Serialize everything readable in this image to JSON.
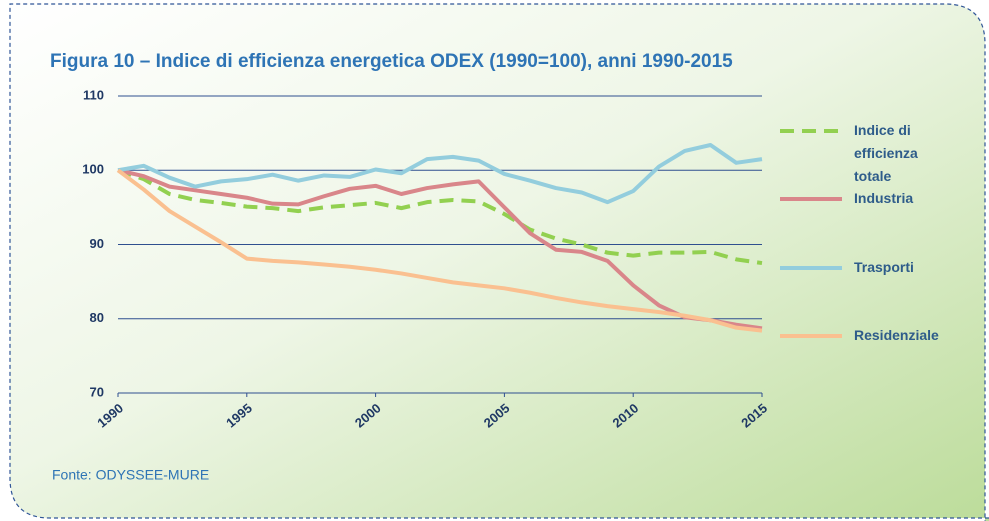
{
  "chart_data": {
    "type": "line",
    "title": "Figura 10 – Indice di efficienza energetica ODEX (1990=100), anni 1990-2015",
    "source": "Fonte: ODYSSEE-MURE",
    "x": [
      1990,
      1991,
      1992,
      1993,
      1994,
      1995,
      1996,
      1997,
      1998,
      1999,
      2000,
      2001,
      2002,
      2003,
      2004,
      2005,
      2006,
      2007,
      2008,
      2009,
      2010,
      2011,
      2012,
      2013,
      2014,
      2015
    ],
    "xlim": [
      1990,
      2015
    ],
    "xticks": [
      1990,
      1995,
      2000,
      2005,
      2010,
      2015
    ],
    "ylim": [
      70,
      110
    ],
    "yticks": [
      70,
      80,
      90,
      100,
      110
    ],
    "grid": true,
    "series": [
      {
        "name": "Indice di efficienza totale",
        "color": "#92d050",
        "dashed": true,
        "values": [
          100,
          98.8,
          96.8,
          96,
          95.6,
          95.1,
          94.9,
          94.5,
          95,
          95.3,
          95.6,
          94.9,
          95.7,
          96,
          95.8,
          94.1,
          92,
          90.8,
          90,
          88.9,
          88.5,
          88.9,
          88.9,
          89,
          88,
          87.5
        ]
      },
      {
        "name": "Industria",
        "color": "#d9868a",
        "values": [
          100,
          99.2,
          97.8,
          97.3,
          96.8,
          96.3,
          95.5,
          95.4,
          96.5,
          97.5,
          97.9,
          96.8,
          97.6,
          98.1,
          98.5,
          95,
          91.5,
          89.3,
          89,
          87.8,
          84.5,
          81.8,
          80.2,
          79.8,
          79.2,
          78.7
        ]
      },
      {
        "name": "Trasporti",
        "color": "#93cddd",
        "values": [
          100,
          100.6,
          99,
          97.8,
          98.5,
          98.8,
          99.4,
          98.6,
          99.3,
          99.1,
          100.1,
          99.6,
          101.5,
          101.8,
          101.3,
          99.5,
          98.6,
          97.6,
          97,
          95.7,
          97.2,
          100.5,
          102.6,
          103.4,
          101,
          101.5
        ]
      },
      {
        "name": "Residenziale",
        "color": "#fac090",
        "values": [
          100,
          97.4,
          94.5,
          92.4,
          90.3,
          88.1,
          87.8,
          87.6,
          87.3,
          87,
          86.6,
          86.1,
          85.5,
          84.9,
          84.5,
          84.1,
          83.5,
          82.8,
          82.2,
          81.7,
          81.3,
          80.9,
          80.4,
          79.8,
          78.8,
          78.4
        ]
      }
    ]
  }
}
